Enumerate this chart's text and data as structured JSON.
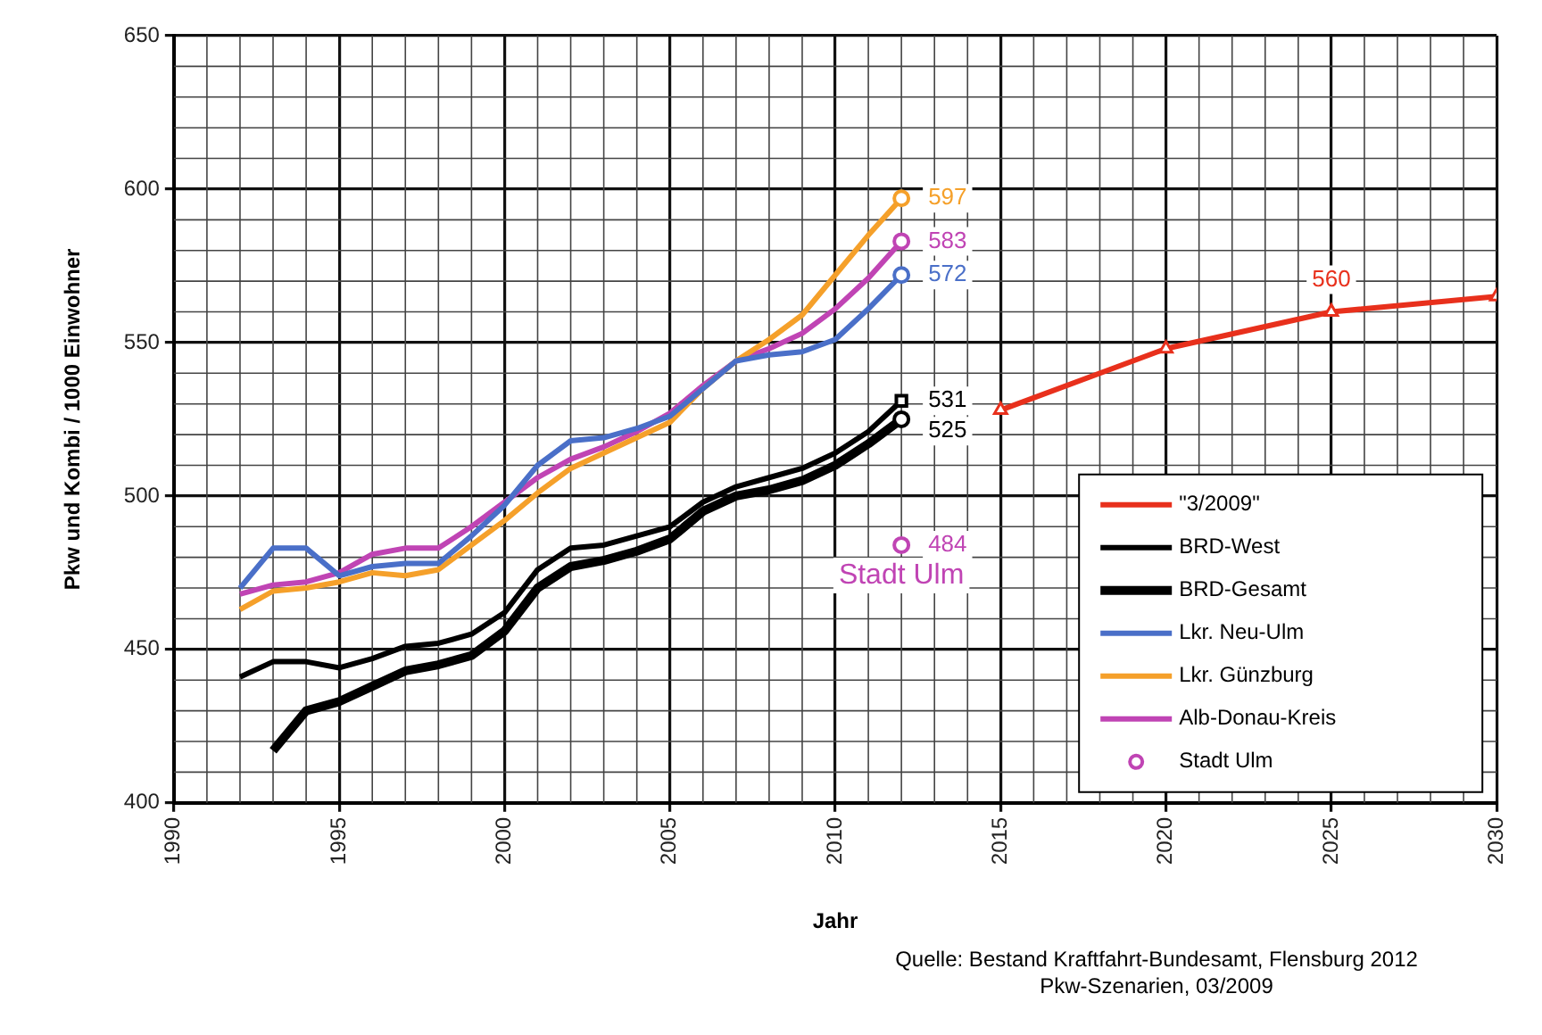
{
  "chart_data": {
    "type": "line",
    "xlabel": "Jahr",
    "ylabel": "Pkw und Kombi / 1000 Einwohner",
    "xlim": [
      1990,
      2030
    ],
    "xticks": [
      1990,
      1995,
      2000,
      2005,
      2010,
      2015,
      2020,
      2025,
      2030
    ],
    "ylim": [
      400,
      650
    ],
    "yticks": [
      400,
      450,
      500,
      550,
      600,
      650
    ],
    "grid": true,
    "legend": "bottom right",
    "line_style": "solid",
    "series": [
      {
        "name": "\"3/2009\"",
        "color": "#e8301c",
        "marker": "triangle",
        "x": [
          2015,
          2020,
          2025,
          2030
        ],
        "values": [
          528,
          548,
          560,
          565
        ],
        "value_labels": [
          null,
          null,
          "560",
          null
        ]
      },
      {
        "name": "BRD-West",
        "color": "#000000",
        "marker": "none",
        "x": [
          1992,
          1993,
          1994,
          1995,
          1996,
          1997,
          1998,
          1999,
          2000,
          2001,
          2002,
          2003,
          2004,
          2005,
          2006,
          2007,
          2008,
          2009,
          2010,
          2011,
          2012
        ],
        "values": [
          441,
          446,
          446,
          444,
          447,
          451,
          452,
          455,
          462,
          476,
          483,
          484,
          487,
          490,
          498,
          503,
          506,
          509,
          514,
          521,
          531
        ]
      },
      {
        "name": "BRD-Gesamt",
        "color": "#000000",
        "marker": "none",
        "x": [
          1993,
          1994,
          1995,
          1996,
          1997,
          1998,
          1999,
          2000,
          2001,
          2002,
          2003,
          2004,
          2005,
          2006,
          2007,
          2008,
          2009,
          2010,
          2011,
          2012
        ],
        "values": [
          417,
          430,
          433,
          438,
          443,
          445,
          448,
          456,
          470,
          477,
          479,
          482,
          486,
          495,
          500,
          502,
          505,
          510,
          517,
          525
        ]
      },
      {
        "name": "Lkr. Neu-Ulm",
        "color": "#4a6fc8",
        "marker": "none",
        "x": [
          1992,
          1993,
          1994,
          1995,
          1996,
          1997,
          1998,
          1999,
          2000,
          2001,
          2002,
          2003,
          2004,
          2005,
          2006,
          2007,
          2008,
          2009,
          2010,
          2011,
          2012
        ],
        "values": [
          470,
          483,
          483,
          474,
          477,
          478,
          478,
          487,
          497,
          510,
          518,
          519,
          522,
          526,
          535,
          544,
          546,
          547,
          551,
          561,
          572
        ]
      },
      {
        "name": "Lkr. Günzburg",
        "color": "#f5a02a",
        "marker": "none",
        "x": [
          1992,
          1993,
          1994,
          1995,
          1996,
          1997,
          1998,
          1999,
          2000,
          2001,
          2002,
          2003,
          2004,
          2005,
          2006,
          2007,
          2008,
          2009,
          2010,
          2011,
          2012
        ],
        "values": [
          463,
          469,
          470,
          472,
          475,
          474,
          476,
          484,
          492,
          501,
          509,
          514,
          519,
          524,
          535,
          544,
          551,
          559,
          572,
          585,
          597
        ]
      },
      {
        "name": "Alb-Donau-Kreis",
        "color": "#c044b4",
        "marker": "none",
        "x": [
          1992,
          1993,
          1994,
          1995,
          1996,
          1997,
          1998,
          1999,
          2000,
          2001,
          2002,
          2003,
          2004,
          2005,
          2006,
          2007,
          2008,
          2009,
          2010,
          2011,
          2012
        ],
        "values": [
          468,
          471,
          472,
          475,
          481,
          483,
          483,
          490,
          498,
          506,
          512,
          516,
          521,
          527,
          536,
          544,
          548,
          553,
          561,
          571,
          583
        ]
      },
      {
        "name": "Stadt Ulm",
        "type": "scatter",
        "color": "#c044b4",
        "marker": "circle",
        "x": [
          2012
        ],
        "values": [
          484
        ],
        "value_labels": [
          "484"
        ]
      },
      {
        "type": "scatter",
        "color": "#f5a02a",
        "marker": "circle",
        "x": [
          2012
        ],
        "values": [
          597
        ],
        "value_labels": [
          "597"
        ]
      },
      {
        "type": "scatter",
        "color": "#c044b4",
        "marker": "circle",
        "x": [
          2012
        ],
        "values": [
          583
        ],
        "value_labels": [
          "583"
        ]
      },
      {
        "type": "scatter",
        "color": "#4a6fc8",
        "marker": "circle",
        "x": [
          2012
        ],
        "values": [
          572
        ],
        "value_labels": [
          "572"
        ]
      },
      {
        "type": "scatter",
        "color": "#000000",
        "marker": "square",
        "x": [
          2012
        ],
        "values": [
          531
        ],
        "value_labels": [
          "531"
        ]
      },
      {
        "type": "scatter",
        "color": "#000000",
        "marker": "circle",
        "x": [
          2012
        ],
        "values": [
          525
        ],
        "value_labels": [
          "525"
        ]
      }
    ],
    "annotations": [
      "Quelle: Bestand Kraftfahrt-Bundesamt, Flensburg 2012",
      "Pkw-Szenarien, 03/2009"
    ]
  }
}
